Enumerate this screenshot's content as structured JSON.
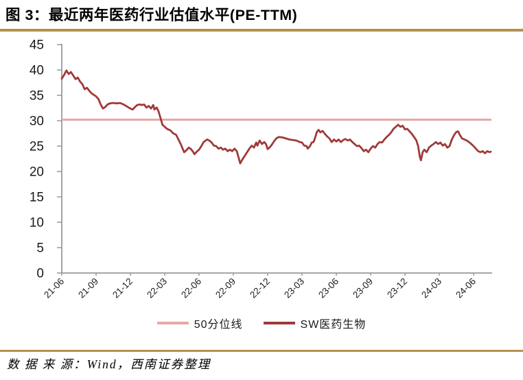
{
  "title": {
    "text": "图 3：最近两年医药行业估值水平(PE-TTM)"
  },
  "footer": {
    "text": "数 据 来 源：Wind，西南证券整理"
  },
  "colors": {
    "accent_rule": "#b5904c",
    "series": "#9e3a38",
    "median": "#e5a8a6",
    "axis": "#999999",
    "text": "#1a1a1a",
    "background": "#ffffff"
  },
  "legend": [
    {
      "label": "50分位线",
      "color": "#e5a8a6"
    },
    {
      "label": "SW医药生物",
      "color": "#9e3a38"
    }
  ],
  "chart_data": {
    "type": "line",
    "title": "最近两年医药行业估值水平(PE-TTM)",
    "ylabel": "PE-TTM",
    "ylim": [
      0,
      45
    ],
    "grid": false,
    "legend_position": "bottom",
    "y_ticks": [
      0,
      5,
      10,
      15,
      20,
      25,
      30,
      35,
      40,
      45
    ],
    "x_ticks": [
      "21-06",
      "21-09",
      "21-12",
      "22-03",
      "22-06",
      "22-09",
      "22-12",
      "23-03",
      "23-06",
      "23-09",
      "23-12",
      "24-03",
      "24-06"
    ],
    "x_unit": "months since 2021-06",
    "x_range": [
      0,
      37.5
    ],
    "median_line": {
      "name": "50分位线",
      "value": 30.2
    },
    "series": [
      {
        "name": "SW医药生物",
        "points": [
          [
            0,
            38.3
          ],
          [
            0.2,
            39.0
          ],
          [
            0.4,
            39.9
          ],
          [
            0.6,
            39.2
          ],
          [
            0.8,
            39.6
          ],
          [
            1,
            38.9
          ],
          [
            1.2,
            38.2
          ],
          [
            1.4,
            38.5
          ],
          [
            1.6,
            37.7
          ],
          [
            1.8,
            37.2
          ],
          [
            2,
            36.2
          ],
          [
            2.2,
            36.5
          ],
          [
            2.4,
            35.9
          ],
          [
            2.6,
            35.4
          ],
          [
            2.8,
            35.1
          ],
          [
            3,
            34.8
          ],
          [
            3.2,
            34.3
          ],
          [
            3.4,
            33.2
          ],
          [
            3.6,
            32.4
          ],
          [
            3.8,
            32.7
          ],
          [
            4,
            33.2
          ],
          [
            4.2,
            33.4
          ],
          [
            4.5,
            33.5
          ],
          [
            4.8,
            33.4
          ],
          [
            5.1,
            33.5
          ],
          [
            5.4,
            33.2
          ],
          [
            5.7,
            32.8
          ],
          [
            6,
            32.4
          ],
          [
            6.2,
            32.2
          ],
          [
            6.4,
            32.7
          ],
          [
            6.6,
            33.1
          ],
          [
            6.8,
            33.2
          ],
          [
            7,
            33.1
          ],
          [
            7.2,
            33.2
          ],
          [
            7.4,
            32.6
          ],
          [
            7.6,
            32.9
          ],
          [
            7.8,
            32.4
          ],
          [
            8,
            33.1
          ],
          [
            8.1,
            32.2
          ],
          [
            8.3,
            32.6
          ],
          [
            8.45,
            31.9
          ],
          [
            8.6,
            30.8
          ],
          [
            8.8,
            29.2
          ],
          [
            9,
            28.8
          ],
          [
            9.2,
            28.4
          ],
          [
            9.5,
            28.1
          ],
          [
            9.7,
            27.6
          ],
          [
            10,
            27.2
          ],
          [
            10.2,
            26.3
          ],
          [
            10.4,
            25.4
          ],
          [
            10.6,
            24.3
          ],
          [
            10.7,
            23.8
          ],
          [
            10.9,
            24.2
          ],
          [
            11.1,
            24.7
          ],
          [
            11.3,
            24.4
          ],
          [
            11.5,
            23.8
          ],
          [
            11.6,
            23.4
          ],
          [
            11.8,
            23.9
          ],
          [
            12,
            24.3
          ],
          [
            12.2,
            25.0
          ],
          [
            12.4,
            25.8
          ],
          [
            12.7,
            26.3
          ],
          [
            12.9,
            26.1
          ],
          [
            13.1,
            25.7
          ],
          [
            13.3,
            25.1
          ],
          [
            13.5,
            25.0
          ],
          [
            13.7,
            24.5
          ],
          [
            13.9,
            24.7
          ],
          [
            14.1,
            24.3
          ],
          [
            14.3,
            24.5
          ],
          [
            14.5,
            24.0
          ],
          [
            14.7,
            24.3
          ],
          [
            14.9,
            24.0
          ],
          [
            15.1,
            24.5
          ],
          [
            15.3,
            24.0
          ],
          [
            15.45,
            22.8
          ],
          [
            15.6,
            21.6
          ],
          [
            15.8,
            22.4
          ],
          [
            16,
            23.1
          ],
          [
            16.2,
            23.8
          ],
          [
            16.4,
            24.5
          ],
          [
            16.6,
            25.1
          ],
          [
            16.8,
            24.7
          ],
          [
            17,
            25.7
          ],
          [
            17.1,
            25.1
          ],
          [
            17.3,
            26.1
          ],
          [
            17.5,
            25.4
          ],
          [
            17.7,
            25.8
          ],
          [
            17.85,
            25.4
          ],
          [
            18,
            24.4
          ],
          [
            18.2,
            24.8
          ],
          [
            18.4,
            25.4
          ],
          [
            18.6,
            26.1
          ],
          [
            18.8,
            26.6
          ],
          [
            19,
            26.8
          ],
          [
            19.3,
            26.7
          ],
          [
            19.6,
            26.5
          ],
          [
            19.9,
            26.3
          ],
          [
            20.2,
            26.2
          ],
          [
            20.5,
            26.1
          ],
          [
            20.8,
            25.8
          ],
          [
            21,
            25.7
          ],
          [
            21.2,
            25.1
          ],
          [
            21.4,
            25.0
          ],
          [
            21.5,
            24.5
          ],
          [
            21.7,
            25.0
          ],
          [
            21.85,
            25.7
          ],
          [
            22,
            25.8
          ],
          [
            22.1,
            26.3
          ],
          [
            22.3,
            27.8
          ],
          [
            22.45,
            28.2
          ],
          [
            22.6,
            27.7
          ],
          [
            22.8,
            28.0
          ],
          [
            23,
            27.4
          ],
          [
            23.2,
            26.9
          ],
          [
            23.4,
            26.5
          ],
          [
            23.6,
            25.8
          ],
          [
            23.8,
            26.3
          ],
          [
            24,
            25.9
          ],
          [
            24.2,
            26.3
          ],
          [
            24.4,
            25.8
          ],
          [
            24.6,
            26.2
          ],
          [
            24.8,
            26.4
          ],
          [
            25,
            26.1
          ],
          [
            25.2,
            26.3
          ],
          [
            25.4,
            25.8
          ],
          [
            25.6,
            25.4
          ],
          [
            25.8,
            25.0
          ],
          [
            26,
            25.1
          ],
          [
            26.2,
            24.6
          ],
          [
            26.4,
            24.0
          ],
          [
            26.6,
            24.3
          ],
          [
            26.8,
            23.8
          ],
          [
            27,
            24.5
          ],
          [
            27.2,
            25.0
          ],
          [
            27.4,
            24.7
          ],
          [
            27.6,
            25.4
          ],
          [
            27.8,
            25.8
          ],
          [
            28,
            25.7
          ],
          [
            28.2,
            26.3
          ],
          [
            28.4,
            26.8
          ],
          [
            28.6,
            27.2
          ],
          [
            28.8,
            27.7
          ],
          [
            29,
            28.4
          ],
          [
            29.2,
            28.8
          ],
          [
            29.4,
            29.2
          ],
          [
            29.6,
            28.8
          ],
          [
            29.8,
            29.0
          ],
          [
            30,
            28.3
          ],
          [
            30.2,
            28.4
          ],
          [
            30.4,
            27.9
          ],
          [
            30.6,
            27.4
          ],
          [
            30.8,
            26.8
          ],
          [
            31,
            26.1
          ],
          [
            31.15,
            25.0
          ],
          [
            31.3,
            22.9
          ],
          [
            31.4,
            22.2
          ],
          [
            31.55,
            23.8
          ],
          [
            31.7,
            24.3
          ],
          [
            31.9,
            23.8
          ],
          [
            32.1,
            24.7
          ],
          [
            32.3,
            25.1
          ],
          [
            32.5,
            25.4
          ],
          [
            32.7,
            25.8
          ],
          [
            32.9,
            25.4
          ],
          [
            33.1,
            25.7
          ],
          [
            33.3,
            25.1
          ],
          [
            33.5,
            25.4
          ],
          [
            33.7,
            24.7
          ],
          [
            33.9,
            25.0
          ],
          [
            34.1,
            26.3
          ],
          [
            34.3,
            27.2
          ],
          [
            34.5,
            27.8
          ],
          [
            34.65,
            27.9
          ],
          [
            34.8,
            27.2
          ],
          [
            35,
            26.5
          ],
          [
            35.2,
            26.3
          ],
          [
            35.4,
            26.1
          ],
          [
            35.6,
            25.8
          ],
          [
            35.8,
            25.4
          ],
          [
            36,
            25.0
          ],
          [
            36.2,
            24.5
          ],
          [
            36.4,
            24.0
          ],
          [
            36.6,
            23.8
          ],
          [
            36.8,
            24.0
          ],
          [
            37,
            23.6
          ],
          [
            37.2,
            24.0
          ],
          [
            37.4,
            23.8
          ],
          [
            37.5,
            23.9
          ]
        ]
      }
    ]
  }
}
